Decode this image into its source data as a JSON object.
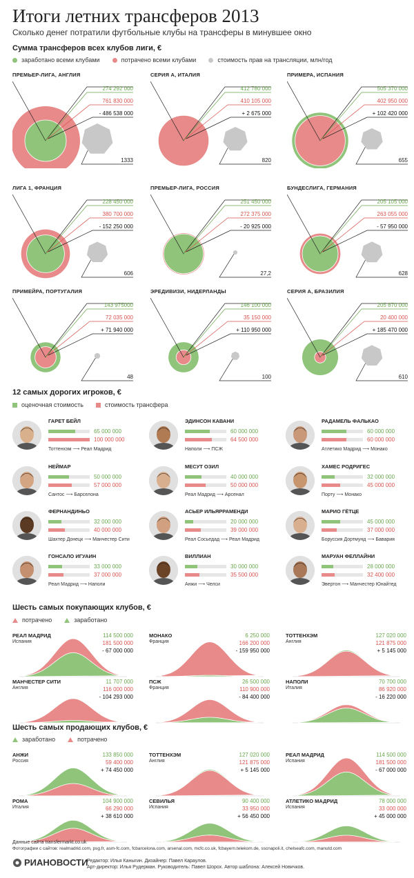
{
  "title": "Итоги летних трансферов 2013",
  "subtitle": "Сколько денег потратили футбольные клубы на трансферы в минувшее окно",
  "colors": {
    "green": "#8fc47a",
    "red": "#e88a8a",
    "grey": "#c8c8c8"
  },
  "leagues_section": {
    "title": "Сумма трансферов всех клубов лиги, €",
    "legend": [
      "заработано всеми клубами",
      "потрачено всеми клубами",
      "стоимость прав на трансляции, млн/год"
    ]
  },
  "players_section": {
    "title": "12 самых дорогих игроков, €",
    "legend": [
      "оценочная стоимость",
      "стоимость трансфера"
    ]
  },
  "buyers_section": {
    "title": "Шесть самых покупающих клубов, €",
    "legend": [
      "потрачено",
      "заработано"
    ]
  },
  "sellers_section": {
    "title": "Шесть самых продающих клубов, €",
    "legend": [
      "заработано",
      "потрачено"
    ]
  },
  "chart_data": [
    {
      "type": "bubble",
      "title": "Сумма трансферов всех клубов лиги, €",
      "series_names": [
        "заработано всеми клубами",
        "потрачено всеми клубами",
        "стоимость прав на трансляции, млн/год"
      ],
      "leagues": [
        {
          "name": "ПРЕМЬЕР-ЛИГА, АНГЛИЯ",
          "earned": 274292000,
          "spent": 761830000,
          "balance": -486538000,
          "earned_label": "274 292 000",
          "spent_label": "761 830 000",
          "balance_label": "- 486 538 000",
          "broadcast": 1333,
          "broadcast_label": "1333"
        },
        {
          "name": "СЕРИЯ А, ИТАЛИЯ",
          "earned": 412780000,
          "spent": 410105000,
          "balance": 2675000,
          "earned_label": "412 780 000",
          "spent_label": "410 105 000",
          "balance_label": "+ 2 675 000",
          "broadcast": 820,
          "broadcast_label": "820"
        },
        {
          "name": "ПРИМЕРА, ИСПАНИЯ",
          "earned": 505370000,
          "spent": 402950000,
          "balance": 102420000,
          "earned_label": "505 370 000",
          "spent_label": "402 950 000",
          "balance_label": "+ 102 420 000",
          "broadcast": 655,
          "broadcast_label": "655"
        },
        {
          "name": "ЛИГА 1, ФРАНЦИЯ",
          "earned": 228450000,
          "spent": 380700000,
          "balance": -152250000,
          "earned_label": "228 450 000",
          "spent_label": "380 700 000",
          "balance_label": "- 152 250 000",
          "broadcast": 606,
          "broadcast_label": "606"
        },
        {
          "name": "ПРЕМЬЕР-ЛИГА, РОССИЯ",
          "earned": 251450000,
          "spent": 272375000,
          "balance": -20925000,
          "earned_label": "251 450 000",
          "spent_label": "272 375 000",
          "balance_label": "- 20 925 000",
          "broadcast": 27.2,
          "broadcast_label": "27,2"
        },
        {
          "name": "БУНДЕСЛИГА, ГЕРМАНИЯ",
          "earned": 205105000,
          "spent": 263055000,
          "balance": -57950000,
          "earned_label": "205 105 000",
          "spent_label": "263 055 000",
          "balance_label": "- 57 950 000",
          "broadcast": 628,
          "broadcast_label": "628"
        },
        {
          "name": "ПРИМЕЙРА, ПОРТУГАЛИЯ",
          "earned": 143975000,
          "spent": 72035000,
          "balance": 71940000,
          "earned_label": "143 975000",
          "spent_label": "72 035 000",
          "balance_label": "+ 71 940 000",
          "broadcast": 48,
          "broadcast_label": "48"
        },
        {
          "name": "ЭРЕДИВИЗИ, НИДЕРЛАНДЫ",
          "earned": 146100000,
          "spent": 35150000,
          "balance": 110950000,
          "earned_label": "146 100 000",
          "spent_label": "35 150 000",
          "balance_label": "+ 110 950 000",
          "broadcast": 100,
          "broadcast_label": "100"
        },
        {
          "name": "СЕРИЯ А, БРАЗИЛИЯ",
          "earned": 205870000,
          "spent": 20400000,
          "balance": 185470000,
          "earned_label": "205 870 000",
          "spent_label": "20 400 000",
          "balance_label": "+ 185 470 000",
          "broadcast": 610,
          "broadcast_label": "610"
        }
      ]
    },
    {
      "type": "bar",
      "title": "12 самых дорогих игроков, €",
      "series_names": [
        "оценочная стоимость",
        "стоимость трансфера"
      ],
      "players": [
        {
          "name": "ГАРЕТ БЕЙЛ",
          "value": 65000000,
          "fee": 100000000,
          "value_label": "65 000 000",
          "fee_label": "100 000 000",
          "from": "Тоттенхэм",
          "to": "Реал Мадрид"
        },
        {
          "name": "ЭДИНСОН КАВАНИ",
          "value": 60000000,
          "fee": 64500000,
          "value_label": "60 000 000",
          "fee_label": "64 500 000",
          "from": "Наполи",
          "to": "ПСЖ"
        },
        {
          "name": "РАДАМЕЛЬ ФАЛЬКАО",
          "value": 60000000,
          "fee": 60000000,
          "value_label": "60 000 000",
          "fee_label": "60 000 000",
          "from": "Атлетико Мадрид",
          "to": "Монако"
        },
        {
          "name": "НЕЙМАР",
          "value": 50000000,
          "fee": 57000000,
          "value_label": "50 000 000",
          "fee_label": "57 000 000",
          "from": "Сантос",
          "to": "Барселона"
        },
        {
          "name": "МЕСУТ ОЗИЛ",
          "value": 40000000,
          "fee": 50000000,
          "value_label": "40 000 000",
          "fee_label": "50 000 000",
          "from": "Реал Мадрид",
          "to": "Арсенал"
        },
        {
          "name": "ХАМЕС РОДРИГЕС",
          "value": 32000000,
          "fee": 45000000,
          "value_label": "32 000 000",
          "fee_label": "45 000 000",
          "from": "Порту",
          "to": "Монако"
        },
        {
          "name": "ФЕРНАНДИНЬО",
          "value": 32000000,
          "fee": 40000000,
          "value_label": "32 000 000",
          "fee_label": "40 000 000",
          "from": "Шахтер Донецк",
          "to": "Манчестер Сити"
        },
        {
          "name": "АСЬЕР ИЛЬЯРРАМЕНДИ",
          "value": 20000000,
          "fee": 39000000,
          "value_label": "20 000 000",
          "fee_label": "39 000 000",
          "from": "Реал Сосьедад",
          "to": "Реал Мадрид"
        },
        {
          "name": "МАРИО ГЁТЦЕ",
          "value": 45000000,
          "fee": 37000000,
          "value_label": "45 000 000",
          "fee_label": "37 000 000",
          "from": "Боруссия Дортмунд",
          "to": "Бавария"
        },
        {
          "name": "ГОНСАЛО ИГУАИН",
          "value": 33000000,
          "fee": 37000000,
          "value_label": "33 000 000",
          "fee_label": "37 000 000",
          "from": "Реал Мадрид",
          "to": "Наполи"
        },
        {
          "name": "ВИЛЛИАН",
          "value": 30000000,
          "fee": 35500000,
          "value_label": "30 000 000",
          "fee_label": "35 500 000",
          "from": "Анжи",
          "to": "Челси"
        },
        {
          "name": "МАРУАН ФЕЛЛАЙНИ",
          "value": 28000000,
          "fee": 32400000,
          "value_label": "28 000 000",
          "fee_label": "32 400 000",
          "from": "Эвертон",
          "to": "Манчестер Юнайтед"
        }
      ]
    },
    {
      "type": "area",
      "title": "Шесть самых покупающих клубов, €",
      "clubs": [
        {
          "name": "РЕАЛ МАДРИД",
          "country": "Испания",
          "earned": 114500000,
          "spent": 181500000,
          "earned_label": "114 500 000",
          "spent_label": "181 500 000",
          "balance_label": "- 67 000 000"
        },
        {
          "name": "МОНАКО",
          "country": "Франция",
          "earned": 6250000,
          "spent": 166200000,
          "earned_label": "6 250 000",
          "spent_label": "166 200 000",
          "balance_label": "- 159 950 000"
        },
        {
          "name": "ТОТТЕНХЭМ",
          "country": "Англия",
          "earned": 127020000,
          "spent": 121875000,
          "earned_label": "127 020 000",
          "spent_label": "121 875 000",
          "balance_label": "+ 5 145 000"
        },
        {
          "name": "МАНЧЕСТЕР СИТИ",
          "country": "Англия",
          "earned": 11707000,
          "spent": 116000000,
          "earned_label": "11 707 000",
          "spent_label": "116 000 000",
          "balance_label": "- 104 293 000"
        },
        {
          "name": "ПСЖ",
          "country": "Франция",
          "earned": 26500000,
          "spent": 110900000,
          "earned_label": "26 500 000",
          "spent_label": "110 900 000",
          "balance_label": "- 84 400 000"
        },
        {
          "name": "НАПОЛИ",
          "country": "Италия",
          "earned": 70700000,
          "spent": 86920000,
          "earned_label": "70 700 000",
          "spent_label": "86 920 000",
          "balance_label": "- 16 220 000"
        }
      ]
    },
    {
      "type": "area",
      "title": "Шесть самых продающих клубов, €",
      "clubs": [
        {
          "name": "АНЖИ",
          "country": "Россия",
          "earned": 133850000,
          "spent": 59400000,
          "earned_label": "133 850 000",
          "spent_label": "59 400 000",
          "balance_label": "+ 74 450 000"
        },
        {
          "name": "ТОТТЕНХЭМ",
          "country": "Англия",
          "earned": 127020000,
          "spent": 121875000,
          "earned_label": "127 020 000",
          "spent_label": "121 875 000",
          "balance_label": "+ 5 145 000"
        },
        {
          "name": "РЕАЛ МАДРИД",
          "country": "Испания",
          "earned": 114500000,
          "spent": 181500000,
          "earned_label": "114 500 000",
          "spent_label": "181 500 000",
          "balance_label": "- 67 000 000"
        },
        {
          "name": "РОМА",
          "country": "Италия",
          "earned": 104900000,
          "spent": 66290000,
          "earned_label": "104 900 000",
          "spent_label": "66 290 000",
          "balance_label": "+ 38 610 000"
        },
        {
          "name": "СЕВИЛЬЯ",
          "country": "Испания",
          "earned": 90400000,
          "spent": 33950000,
          "earned_label": "90 400 000",
          "spent_label": "33 950 000",
          "balance_label": "+ 56 450 000"
        },
        {
          "name": "АТЛЕТИКО МАДРИД",
          "country": "Испания",
          "earned": 78000000,
          "spent": 33000000,
          "earned_label": "78 000 000",
          "spent_label": "33 000 000",
          "balance_label": "+ 45 000 000"
        }
      ]
    }
  ],
  "footer": {
    "source": "Данные сайта transfermarkt.co.uk",
    "photos": "Фотографии с сайтов: realmadrid.com, psg.fr, asm-fc.com, fcbarcelona.com, arsenal.com, mcfc.co.uk, fcbayern.telekom.de, sscnapoli.it, chelseafc.com, manutd.com",
    "logo": "РИАНОВОСТИ",
    "credit1": "Редактор: Илья Каныгин. Дизайнер: Павел Караулов.",
    "credit2": "Арт-директор: Илья Рудерман. Руководитель: Павел Шорох. Автор шаблона: Алексей Новичков."
  }
}
